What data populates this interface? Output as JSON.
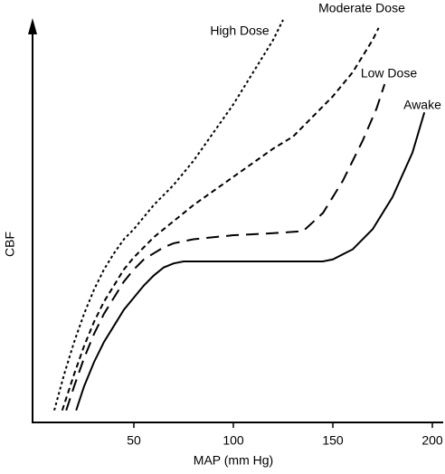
{
  "chart_data": {
    "type": "line",
    "xlabel": "MAP (mm Hg)",
    "ylabel": "CBF",
    "xlim": [
      0,
      205
    ],
    "ylim": [
      0,
      102
    ],
    "xticks": [
      50,
      100,
      150,
      200
    ],
    "series": [
      {
        "name": "Awake",
        "color": "#000000",
        "dash": "none",
        "x": [
          21,
          25,
          30,
          35,
          40,
          45,
          50,
          55,
          60,
          65,
          70,
          75,
          100,
          125,
          145,
          150,
          160,
          170,
          180,
          190,
          196
        ],
        "values": [
          3,
          9,
          15,
          20,
          24,
          28,
          31,
          34,
          36.5,
          38.5,
          39.5,
          40,
          40,
          40,
          40,
          40.5,
          43,
          48,
          56,
          67,
          77
        ]
      },
      {
        "name": "Low Dose",
        "color": "#000000",
        "dash": "14 8",
        "x": [
          16,
          20,
          25,
          30,
          35,
          40,
          45,
          50,
          55,
          60,
          65,
          70,
          80,
          100,
          120,
          135,
          145,
          155,
          165,
          172,
          176
        ],
        "values": [
          3,
          9,
          16,
          22,
          27,
          31,
          35,
          38,
          40.5,
          42,
          43.5,
          44.5,
          45.5,
          46.5,
          47,
          47.5,
          52,
          60,
          70,
          78,
          84
        ]
      },
      {
        "name": "Moderate Dose",
        "color": "#000000",
        "dash": "6 4",
        "x": [
          14,
          20,
          25,
          30,
          35,
          40,
          45,
          50,
          55,
          60,
          70,
          80,
          90,
          100,
          110,
          120,
          130,
          140,
          150,
          160,
          170,
          173
        ],
        "values": [
          3,
          12,
          19,
          25,
          30,
          34,
          38,
          41,
          43.5,
          46,
          50,
          54,
          57.5,
          61,
          64.5,
          68,
          71,
          76,
          81,
          87,
          95,
          98
        ]
      },
      {
        "name": "High Dose",
        "color": "#000000",
        "dash": "3 3",
        "x": [
          10,
          15,
          20,
          25,
          30,
          35,
          40,
          45,
          50,
          60,
          70,
          80,
          90,
          100,
          110,
          120,
          125
        ],
        "values": [
          3,
          12,
          20,
          27,
          33,
          38,
          42,
          45.5,
          48,
          54,
          59,
          65,
          72,
          79,
          87,
          95,
          100
        ]
      }
    ]
  }
}
